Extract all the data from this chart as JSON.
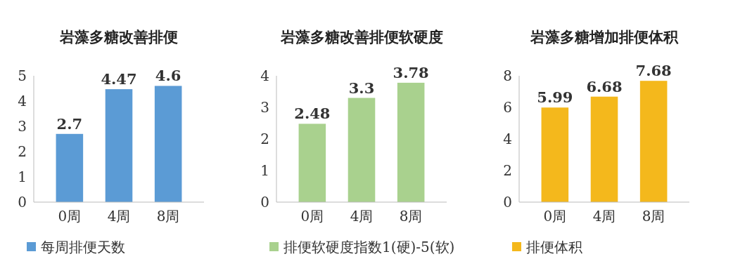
{
  "chart_data": [
    {
      "type": "bar",
      "title": "岩藻多糖改善排便",
      "categories": [
        "0周",
        "4周",
        "8周"
      ],
      "series": [
        {
          "name": "每周排便天数",
          "color": "#5b9bd5",
          "values": [
            2.7,
            4.47,
            4.6
          ]
        }
      ],
      "ylim": [
        0,
        5
      ],
      "yticks": [
        0,
        1,
        2,
        3,
        4,
        5
      ],
      "data_labels": true,
      "legend": "bottom",
      "grid": false
    },
    {
      "type": "bar",
      "title": "岩藻多糖改善排便软硬度",
      "categories": [
        "0周",
        "4周",
        "8周"
      ],
      "series": [
        {
          "name": "排便软硬度指数1(硬)-5(软)",
          "color": "#a9d18e",
          "values": [
            2.48,
            3.3,
            3.78
          ]
        }
      ],
      "ylim": [
        0,
        4
      ],
      "yticks": [
        0,
        1,
        2,
        3,
        4
      ],
      "data_labels": true,
      "legend": "bottom",
      "grid": false
    },
    {
      "type": "bar",
      "title": "岩藻多糖增加排便体积",
      "categories": [
        "0周",
        "4周",
        "8周"
      ],
      "series": [
        {
          "name": "排便体积",
          "color": "#f4b81c",
          "values": [
            5.99,
            6.68,
            7.68
          ]
        }
      ],
      "ylim": [
        0,
        8
      ],
      "yticks": [
        0,
        2,
        4,
        6,
        8
      ],
      "data_labels": true,
      "legend": "bottom",
      "grid": false
    }
  ]
}
